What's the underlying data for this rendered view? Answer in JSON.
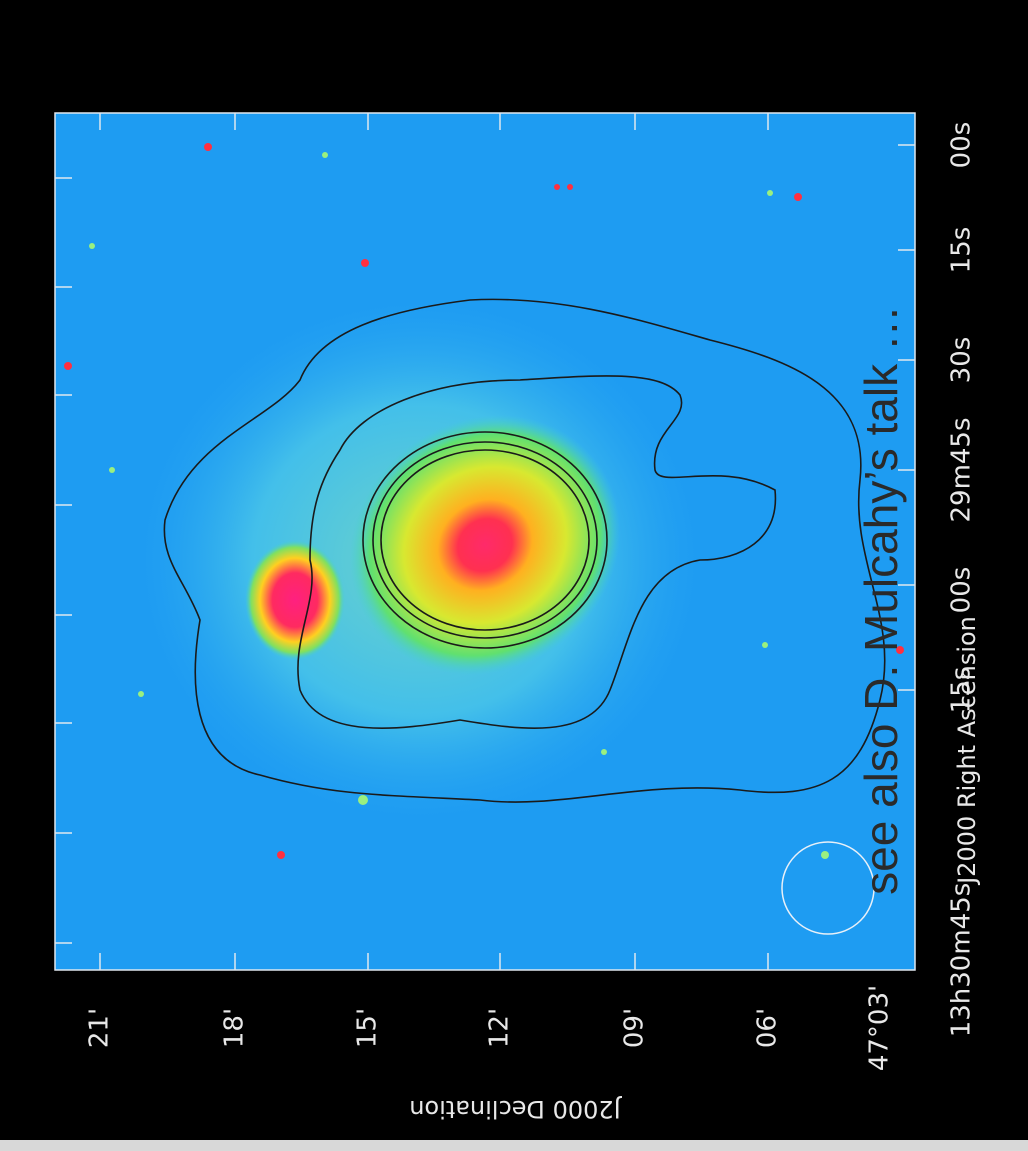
{
  "figure": {
    "ra_ticks": [
      "00s",
      "15s",
      "30s",
      "29m45s",
      "00s",
      "15s",
      "13h30m45s"
    ],
    "ra_axis_label": "J2000 Right Ascension",
    "dec_ticks": [
      "21'",
      "18'",
      "15'",
      "12'",
      "09'",
      "06'",
      "47°03'"
    ],
    "dec_axis_label": "J2000 Declination",
    "annotation": "see also D. Mulcahy’s talk …"
  }
}
